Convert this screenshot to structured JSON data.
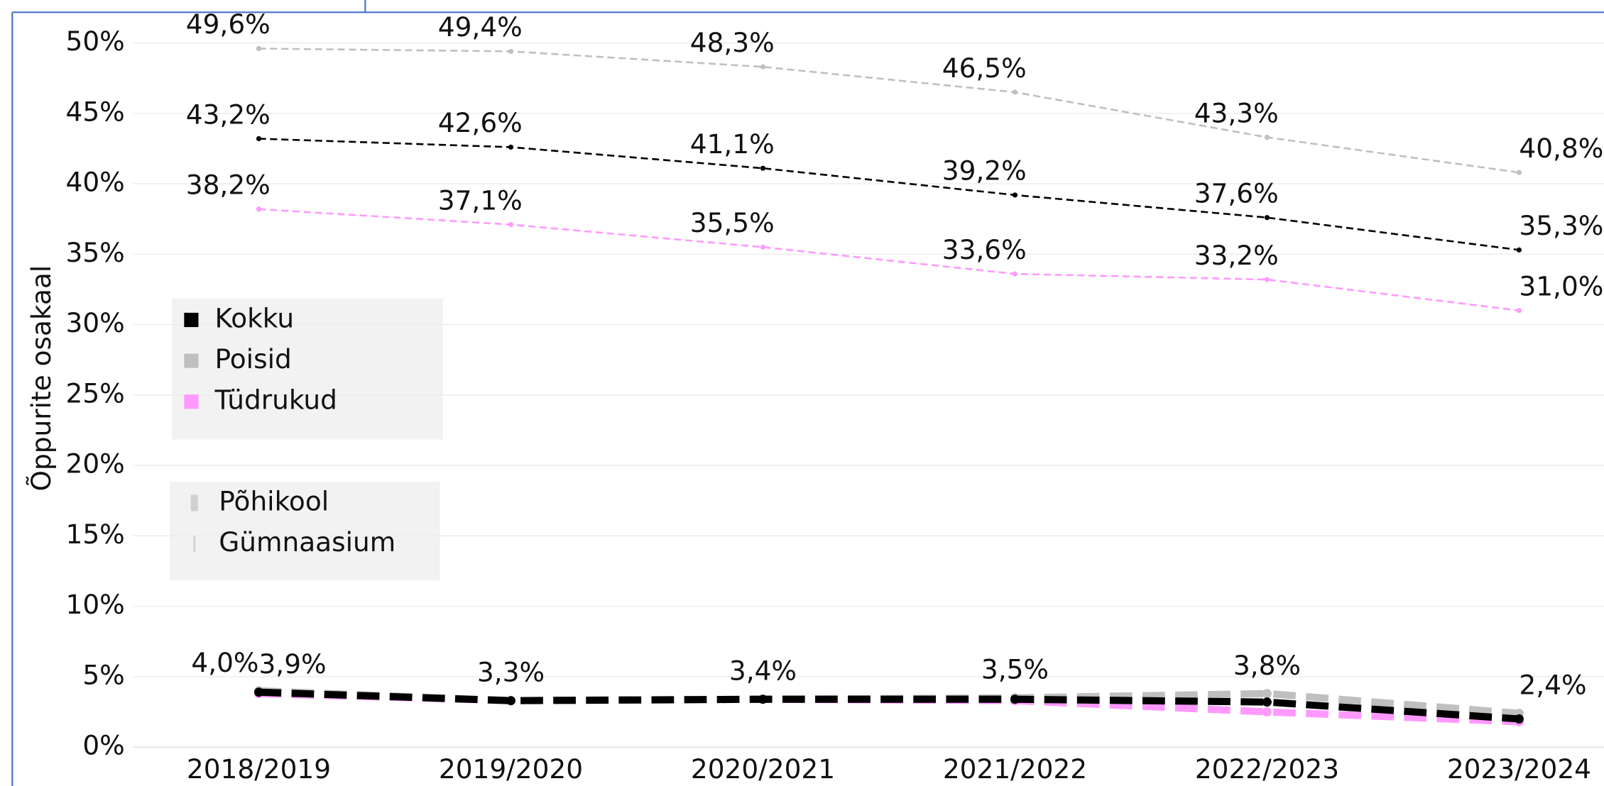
{
  "chart_data": {
    "type": "line",
    "y_label": "Õppurite osakaal",
    "categories": [
      "2018/2019",
      "2019/2020",
      "2020/2021",
      "2021/2022",
      "2022/2023",
      "2023/2024"
    ],
    "ylim": [
      0,
      52
    ],
    "yticks": [
      {
        "value": 0,
        "label": "0%"
      },
      {
        "value": 5,
        "label": "5%"
      },
      {
        "value": 10,
        "label": "10%"
      },
      {
        "value": 15,
        "label": "15%"
      },
      {
        "value": 20,
        "label": "20%"
      },
      {
        "value": 25,
        "label": "25%"
      },
      {
        "value": 30,
        "label": "30%"
      },
      {
        "value": 35,
        "label": "35%"
      },
      {
        "value": 40,
        "label": "40%"
      },
      {
        "value": 45,
        "label": "45%"
      },
      {
        "value": 50,
        "label": "50%"
      }
    ],
    "grid": true,
    "levels": [
      "Põhikool",
      "Gümnaasium"
    ],
    "series": [
      {
        "name": "Kokku",
        "color": "#000000",
        "level": "Põhikool",
        "values": [
          43.2,
          42.6,
          41.1,
          39.2,
          37.6,
          35.3
        ],
        "value_labels": [
          "43,2%",
          "42,6%",
          "41,1%",
          "39,2%",
          "37,6%",
          "35,3%"
        ]
      },
      {
        "name": "Poisid",
        "color": "#bfbfbf",
        "level": "Põhikool",
        "values": [
          49.6,
          49.4,
          48.3,
          46.5,
          43.3,
          40.8
        ],
        "value_labels": [
          "49,6%",
          "49,4%",
          "48,3%",
          "46,5%",
          "43,3%",
          "40,8%"
        ]
      },
      {
        "name": "Tüdrukud",
        "color": "#ff99ff",
        "level": "Põhikool",
        "values": [
          38.2,
          37.1,
          35.5,
          33.6,
          33.2,
          31.0
        ],
        "value_labels": [
          "38,2%",
          "37,1%",
          "35,5%",
          "33,6%",
          "33,2%",
          "31,0%"
        ]
      },
      {
        "name": "Poisid",
        "color": "#bfbfbf",
        "level": "Gümnaasium",
        "values": [
          4.0,
          3.3,
          3.4,
          3.5,
          3.8,
          2.4
        ],
        "value_labels": [
          "4,0%",
          "3,3%",
          "3,4%",
          "3,5%",
          "3,8%",
          "2,4%"
        ]
      },
      {
        "name": "Tüdrukud",
        "color": "#ff99ff",
        "level": "Gümnaasium",
        "values": [
          3.8,
          3.3,
          3.4,
          3.3,
          2.5,
          1.8
        ]
      },
      {
        "name": "Kokku",
        "color": "#000000",
        "level": "Gümnaasium",
        "values": [
          3.9,
          3.3,
          3.4,
          3.4,
          3.2,
          2.0
        ],
        "value_labels": [
          "3,9%",
          null,
          null,
          null,
          null,
          null
        ]
      }
    ]
  }
}
